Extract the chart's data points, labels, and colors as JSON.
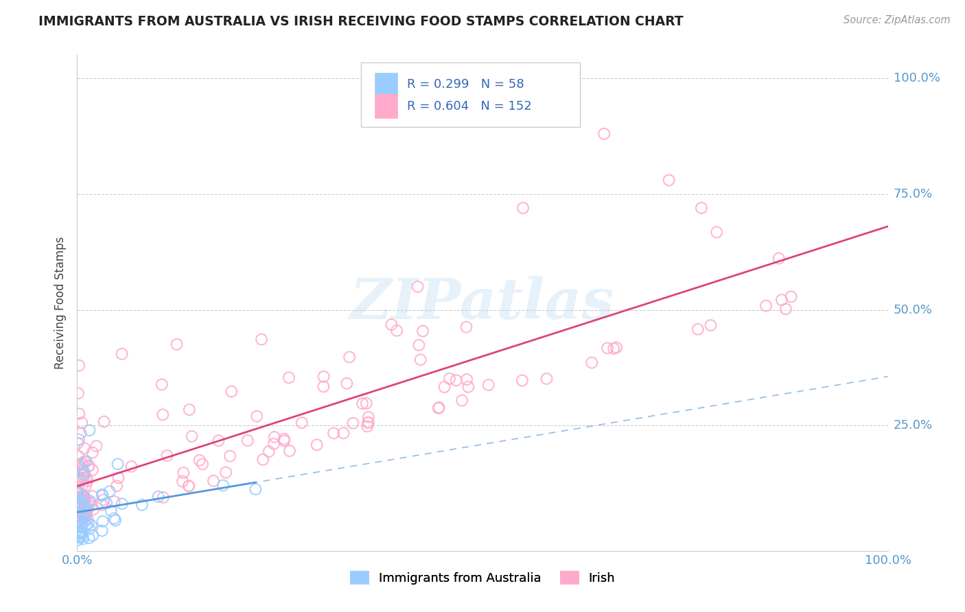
{
  "title": "IMMIGRANTS FROM AUSTRALIA VS IRISH RECEIVING FOOD STAMPS CORRELATION CHART",
  "source": "Source: ZipAtlas.com",
  "ylabel": "Receiving Food Stamps",
  "xlim": [
    0.0,
    1.0
  ],
  "ylim": [
    0.0,
    1.05
  ],
  "grid_color": "#cccccc",
  "background_color": "#ffffff",
  "watermark_text": "ZIPatlas",
  "aus_color": "#99CCFF",
  "aus_line_color": "#5599DD",
  "irish_color": "#FFAACC",
  "irish_line_color": "#DD4477",
  "legend_text_color": "#3366BB",
  "tick_color": "#5599CC",
  "title_color": "#222222",
  "source_color": "#999999",
  "aus_R": "0.299",
  "aus_N": "58",
  "irish_R": "0.604",
  "irish_N": "152",
  "aus_legend": "Immigrants from Australia",
  "irish_legend": "Irish"
}
